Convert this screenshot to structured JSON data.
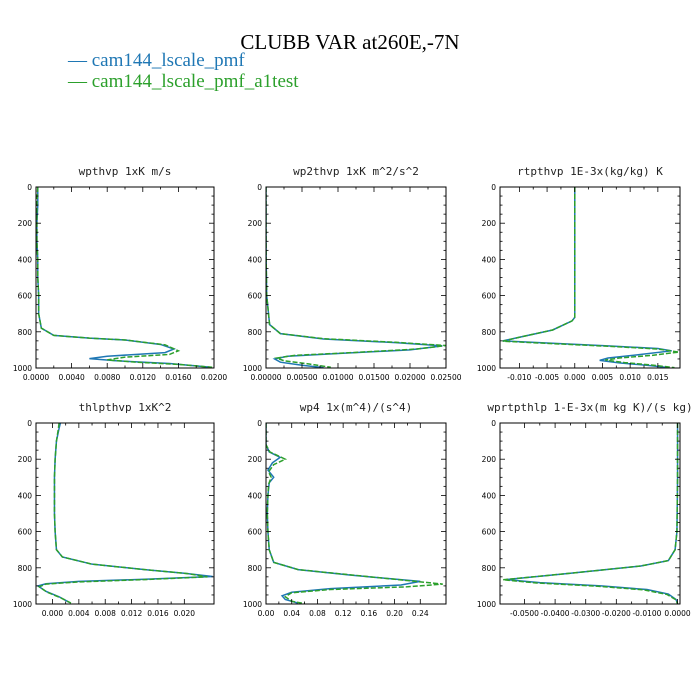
{
  "title": "CLUBB VAR at260E,-7N",
  "legend": [
    {
      "label": "cam144_lscale_pmf",
      "color": "#1f77b4"
    },
    {
      "label": "cam144_lscale_pmf_a1test",
      "color": "#2ca02c"
    }
  ],
  "chart_data": [
    {
      "type": "line",
      "title": "wpthvp  1xK m/s",
      "xlim": [
        0,
        0.02
      ],
      "xticks": [
        "0.0000",
        "0.0040",
        "0.0080",
        "0.0120",
        "0.0160",
        "0.0200"
      ],
      "ylim": [
        1000,
        0
      ],
      "yticks": [
        "0",
        "200",
        "400",
        "600",
        "800",
        "1000"
      ],
      "series": [
        {
          "name": "cam144_lscale_pmf",
          "style": "solid",
          "points": [
            [
              0.0002,
              0
            ],
            [
              0.0002,
              100
            ],
            [
              0.0001,
              200
            ],
            [
              0.0001,
              300
            ],
            [
              0.0002,
              400
            ],
            [
              0.0002,
              500
            ],
            [
              0.0003,
              600
            ],
            [
              0.0003,
              700
            ],
            [
              0.0006,
              780
            ],
            [
              0.002,
              820
            ],
            [
              0.006,
              835
            ],
            [
              0.01,
              845
            ],
            [
              0.014,
              870
            ],
            [
              0.0155,
              895
            ],
            [
              0.0145,
              915
            ],
            [
              0.008,
              935
            ],
            [
              0.006,
              948
            ],
            [
              0.009,
              960
            ],
            [
              0.015,
              975
            ],
            [
              0.0195,
              995
            ]
          ]
        },
        {
          "name": "cam144_lscale_pmf_a1test",
          "style": "dashed",
          "points": [
            [
              0.0002,
              0
            ],
            [
              0.0001,
              100
            ],
            [
              0.0001,
              200
            ],
            [
              0.0001,
              300
            ],
            [
              0.0002,
              400
            ],
            [
              0.0002,
              500
            ],
            [
              0.0003,
              600
            ],
            [
              0.0003,
              700
            ],
            [
              0.0006,
              780
            ],
            [
              0.002,
              820
            ],
            [
              0.006,
              835
            ],
            [
              0.01,
              845
            ],
            [
              0.0145,
              872
            ],
            [
              0.016,
              905
            ],
            [
              0.015,
              925
            ],
            [
              0.01,
              940
            ],
            [
              0.008,
              955
            ],
            [
              0.011,
              967
            ],
            [
              0.016,
              980
            ],
            [
              0.0198,
              996
            ]
          ]
        }
      ]
    },
    {
      "type": "line",
      "title": "wp2thvp  1xK m^2/s^2",
      "xlim": [
        0,
        0.025
      ],
      "xticks": [
        "0.00000",
        "0.00500",
        "0.01000",
        "0.01500",
        "0.02000",
        "0.02500"
      ],
      "ylim": [
        1000,
        0
      ],
      "yticks": [
        "0",
        "200",
        "400",
        "600",
        "800",
        "1000"
      ],
      "series": [
        {
          "name": "cam144_lscale_pmf",
          "style": "solid",
          "points": [
            [
              0.0,
              0
            ],
            [
              0.0,
              200
            ],
            [
              2e-05,
              400
            ],
            [
              0.0001,
              600
            ],
            [
              0.0005,
              760
            ],
            [
              0.002,
              810
            ],
            [
              0.008,
              840
            ],
            [
              0.018,
              860
            ],
            [
              0.0245,
              878
            ],
            [
              0.02,
              900
            ],
            [
              0.01,
              920
            ],
            [
              0.003,
              935
            ],
            [
              0.0012,
              950
            ],
            [
              0.002,
              968
            ],
            [
              0.005,
              985
            ],
            [
              0.008,
              998
            ]
          ]
        },
        {
          "name": "cam144_lscale_pmf_a1test",
          "style": "dashed",
          "points": [
            [
              0.0,
              0
            ],
            [
              0.0,
              200
            ],
            [
              2e-05,
              400
            ],
            [
              0.0001,
              600
            ],
            [
              0.0005,
              760
            ],
            [
              0.002,
              810
            ],
            [
              0.008,
              838
            ],
            [
              0.018,
              858
            ],
            [
              0.025,
              876
            ],
            [
              0.021,
              895
            ],
            [
              0.012,
              915
            ],
            [
              0.004,
              930
            ],
            [
              0.0015,
              945
            ],
            [
              0.0025,
              960
            ],
            [
              0.006,
              978
            ],
            [
              0.009,
              996
            ]
          ]
        }
      ]
    },
    {
      "type": "line",
      "title": "rtpthvp  1E-3x(kg/kg) K",
      "xlim": [
        -0.0135,
        0.019
      ],
      "xticks": [
        "-0.010",
        "-0.005",
        "0.000",
        "0.005",
        "0.010",
        "0.015"
      ],
      "xtick_values": [
        -0.01,
        -0.005,
        0.0,
        0.005,
        0.01,
        0.015
      ],
      "ylim": [
        1000,
        0
      ],
      "yticks": [
        "0",
        "200",
        "400",
        "600",
        "800",
        "1000"
      ],
      "series": [
        {
          "name": "cam144_lscale_pmf",
          "style": "solid",
          "points": [
            [
              0.0,
              0
            ],
            [
              0.0,
              300
            ],
            [
              0.0,
              600
            ],
            [
              0.0,
              720
            ],
            [
              -0.0005,
              740
            ],
            [
              -0.004,
              790
            ],
            [
              -0.01,
              830
            ],
            [
              -0.013,
              850
            ],
            [
              -0.005,
              862
            ],
            [
              0.006,
              878
            ],
            [
              0.015,
              892
            ],
            [
              0.0175,
              905
            ],
            [
              0.012,
              925
            ],
            [
              0.006,
              945
            ],
            [
              0.0045,
              958
            ],
            [
              0.008,
              972
            ],
            [
              0.013,
              985
            ],
            [
              0.017,
              998
            ]
          ]
        },
        {
          "name": "cam144_lscale_pmf_a1test",
          "style": "dashed",
          "points": [
            [
              0.0,
              0
            ],
            [
              0.0,
              300
            ],
            [
              0.0,
              600
            ],
            [
              0.0,
              720
            ],
            [
              -0.0005,
              740
            ],
            [
              -0.004,
              790
            ],
            [
              -0.01,
              830
            ],
            [
              -0.013,
              852
            ],
            [
              -0.005,
              864
            ],
            [
              0.006,
              880
            ],
            [
              0.015,
              895
            ],
            [
              0.0188,
              912
            ],
            [
              0.014,
              930
            ],
            [
              0.008,
              945
            ],
            [
              0.0055,
              956
            ],
            [
              0.009,
              970
            ],
            [
              0.014,
              984
            ],
            [
              0.018,
              998
            ]
          ]
        }
      ]
    },
    {
      "type": "line",
      "title": "thlpthvp  1xK^2",
      "xlim": [
        -0.0025,
        0.0245
      ],
      "xticks": [
        "0.000",
        "0.004",
        "0.008",
        "0.012",
        "0.016",
        "0.020"
      ],
      "xtick_values": [
        0.0,
        0.004,
        0.008,
        0.012,
        0.016,
        0.02
      ],
      "ylim": [
        1000,
        0
      ],
      "yticks": [
        "0",
        "200",
        "400",
        "600",
        "800",
        "1000"
      ],
      "series": [
        {
          "name": "cam144_lscale_pmf",
          "style": "solid",
          "points": [
            [
              0.0012,
              0
            ],
            [
              0.001,
              30
            ],
            [
              0.0006,
              100
            ],
            [
              0.0004,
              200
            ],
            [
              0.0003,
              300
            ],
            [
              0.0003,
              400
            ],
            [
              0.0003,
              500
            ],
            [
              0.0004,
              600
            ],
            [
              0.0006,
              700
            ],
            [
              0.0015,
              740
            ],
            [
              0.006,
              780
            ],
            [
              0.014,
              810
            ],
            [
              0.02,
              830
            ],
            [
              0.0243,
              848
            ],
            [
              0.015,
              862
            ],
            [
              0.004,
              875
            ],
            [
              -0.001,
              888
            ],
            [
              -0.0022,
              900
            ],
            [
              -0.001,
              930
            ],
            [
              0.001,
              960
            ],
            [
              0.0025,
              990
            ]
          ]
        },
        {
          "name": "cam144_lscale_pmf_a1test",
          "style": "dashed",
          "points": [
            [
              0.001,
              0
            ],
            [
              0.0009,
              30
            ],
            [
              0.0006,
              100
            ],
            [
              0.0004,
              200
            ],
            [
              0.0003,
              300
            ],
            [
              0.0003,
              400
            ],
            [
              0.0003,
              500
            ],
            [
              0.0004,
              600
            ],
            [
              0.0006,
              700
            ],
            [
              0.0015,
              740
            ],
            [
              0.006,
              780
            ],
            [
              0.014,
              810
            ],
            [
              0.0205,
              832
            ],
            [
              0.0235,
              850
            ],
            [
              0.014,
              865
            ],
            [
              0.004,
              878
            ],
            [
              -0.001,
              890
            ],
            [
              -0.002,
              905
            ],
            [
              -0.0008,
              935
            ],
            [
              0.0012,
              965
            ],
            [
              0.0028,
              995
            ]
          ]
        }
      ]
    },
    {
      "type": "line",
      "title": "wp4  1x(m^4)/(s^4)",
      "xlim": [
        0,
        0.28
      ],
      "xticks": [
        "0.00",
        "0.04",
        "0.08",
        "0.12",
        "0.16",
        "0.20",
        "0.24"
      ],
      "ylim": [
        1000,
        0
      ],
      "yticks": [
        "0",
        "200",
        "400",
        "600",
        "800",
        "1000"
      ],
      "series": [
        {
          "name": "cam144_lscale_pmf",
          "style": "solid",
          "points": [
            [
              0.0,
              0
            ],
            [
              0.0,
              120
            ],
            [
              0.005,
              160
            ],
            [
              0.022,
              190
            ],
            [
              0.01,
              220
            ],
            [
              0.003,
              260
            ],
            [
              0.012,
              300
            ],
            [
              0.005,
              330
            ],
            [
              0.003,
              400
            ],
            [
              0.002,
              500
            ],
            [
              0.003,
              600
            ],
            [
              0.005,
              700
            ],
            [
              0.012,
              770
            ],
            [
              0.05,
              810
            ],
            [
              0.13,
              840
            ],
            [
              0.24,
              875
            ],
            [
              0.21,
              895
            ],
            [
              0.1,
              915
            ],
            [
              0.04,
              935
            ],
            [
              0.025,
              955
            ],
            [
              0.03,
              975
            ],
            [
              0.05,
              995
            ]
          ]
        },
        {
          "name": "cam144_lscale_pmf_a1test",
          "style": "dashed",
          "points": [
            [
              0.0,
              0
            ],
            [
              0.0,
              120
            ],
            [
              0.006,
              160
            ],
            [
              0.03,
              200
            ],
            [
              0.012,
              230
            ],
            [
              0.004,
              270
            ],
            [
              0.008,
              300
            ],
            [
              0.004,
              340
            ],
            [
              0.003,
              400
            ],
            [
              0.002,
              500
            ],
            [
              0.003,
              600
            ],
            [
              0.005,
              700
            ],
            [
              0.012,
              770
            ],
            [
              0.05,
              810
            ],
            [
              0.14,
              842
            ],
            [
              0.275,
              890
            ],
            [
              0.22,
              905
            ],
            [
              0.1,
              920
            ],
            [
              0.04,
              938
            ],
            [
              0.03,
              960
            ],
            [
              0.04,
              985
            ],
            [
              0.06,
              998
            ]
          ]
        }
      ]
    },
    {
      "type": "line",
      "title": "wprtpthlp  1-E-3x(m kg K)/(s kg)",
      "xlim": [
        -0.058,
        0.0008
      ],
      "xticks": [
        "-0.0500",
        "-0.0400",
        "-0.0300",
        "-0.0200",
        "-0.0100",
        "0.0000"
      ],
      "xtick_values": [
        -0.05,
        -0.04,
        -0.03,
        -0.02,
        -0.01,
        0.0
      ],
      "ylim": [
        1000,
        0
      ],
      "yticks": [
        "0",
        "200",
        "400",
        "600",
        "800",
        "1000"
      ],
      "series": [
        {
          "name": "cam144_lscale_pmf",
          "style": "solid",
          "points": [
            [
              0.0,
              0
            ],
            [
              0.0,
              300
            ],
            [
              -0.0002,
              600
            ],
            [
              -0.0008,
              700
            ],
            [
              -0.003,
              760
            ],
            [
              -0.012,
              790
            ],
            [
              -0.035,
              830
            ],
            [
              -0.056,
              865
            ],
            [
              -0.045,
              882
            ],
            [
              -0.025,
              900
            ],
            [
              -0.01,
              920
            ],
            [
              -0.003,
              945
            ],
            [
              -0.0005,
              975
            ],
            [
              0.0,
              998
            ]
          ]
        },
        {
          "name": "cam144_lscale_pmf_a1test",
          "style": "dashed",
          "points": [
            [
              0.0,
              0
            ],
            [
              0.0,
              300
            ],
            [
              -0.0002,
              600
            ],
            [
              -0.0008,
              700
            ],
            [
              -0.003,
              760
            ],
            [
              -0.012,
              790
            ],
            [
              -0.035,
              830
            ],
            [
              -0.057,
              866
            ],
            [
              -0.046,
              884
            ],
            [
              -0.026,
              902
            ],
            [
              -0.011,
              922
            ],
            [
              -0.0035,
              947
            ],
            [
              -0.0006,
              976
            ],
            [
              0.0,
              998
            ]
          ]
        }
      ]
    }
  ]
}
